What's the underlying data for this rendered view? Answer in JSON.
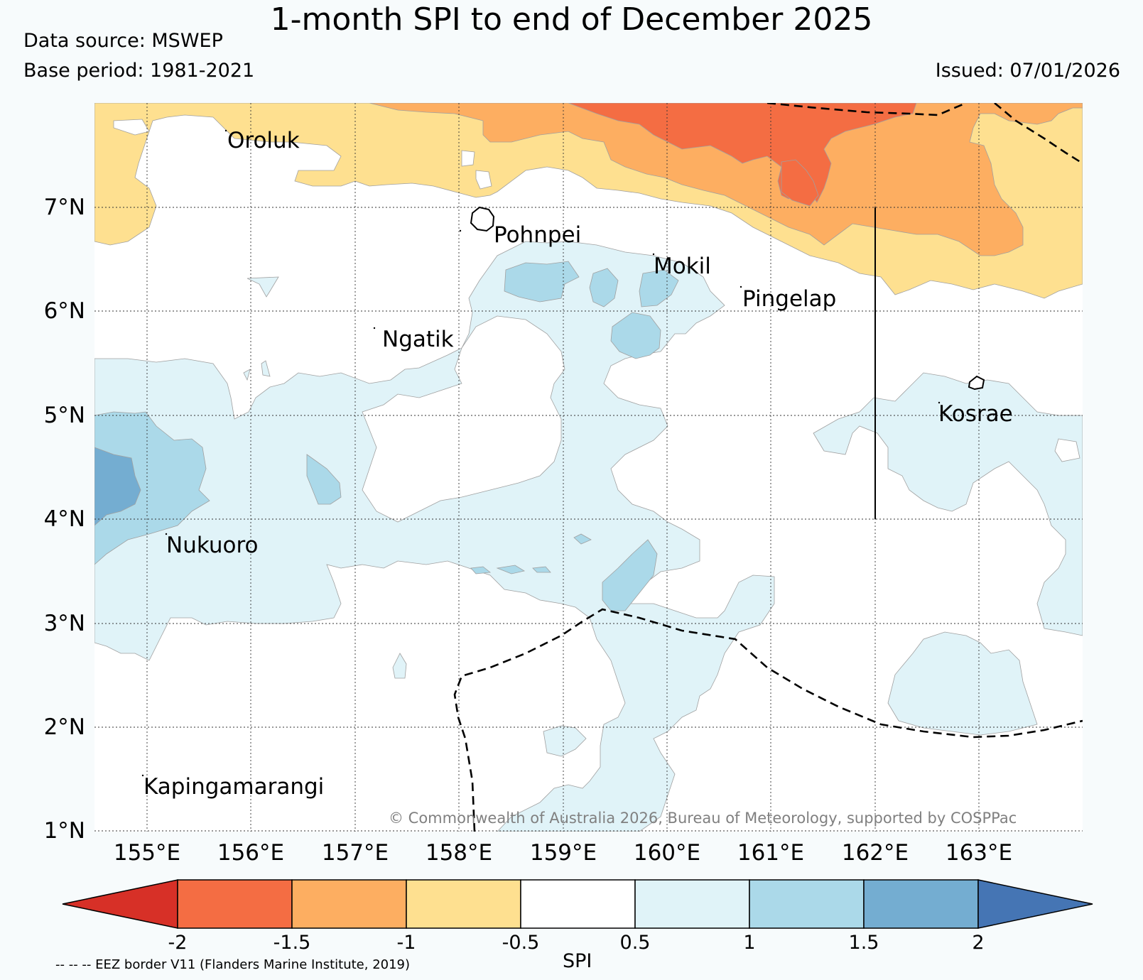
{
  "header": {
    "title": "1-month SPI to end of December 2025",
    "data_source": "Data source: MSWEP",
    "base_period": "Base period: 1981-2021",
    "issued": "Issued: 07/01/2026"
  },
  "map": {
    "lat_labels": [
      "7°N",
      "6°N",
      "5°N",
      "4°N",
      "3°N",
      "2°N",
      "1°N"
    ],
    "lon_labels": [
      "155°E",
      "156°E",
      "157°E",
      "158°E",
      "159°E",
      "160°E",
      "161°E",
      "162°E",
      "163°E"
    ],
    "places": [
      "Oroluk",
      "Pohnpei",
      "Mokil",
      "Pingelap",
      "Ngatik",
      "Kosrae",
      "Nukuoro",
      "Kapingamarangi"
    ],
    "copyright": "© Commonwealth of Australia 2026, Bureau of Meteorology, supported by COSPPac",
    "colors": {
      "background": "#f7fbfc",
      "cat_lt_neg2": "#d73027",
      "cat_neg2_neg1_5": "#f46d43",
      "cat_neg1_5_neg1": "#fdae61",
      "cat_neg1_neg0_5": "#fee090",
      "cat_neutral": "#ffffff",
      "cat_0_5_1": "#e0f3f8",
      "cat_1_1_5": "#abd9e9",
      "cat_1_5_2": "#74add1",
      "cat_gt_2": "#4575b4"
    }
  },
  "colorbar": {
    "ticks": [
      "-2",
      "-1.5",
      "-1",
      "-0.5",
      "0.5",
      "1",
      "1.5",
      "2"
    ],
    "label": "SPI",
    "legend_note": "-- -- -- EEZ border V11 (Flanders Marine Institute, 2019)"
  }
}
